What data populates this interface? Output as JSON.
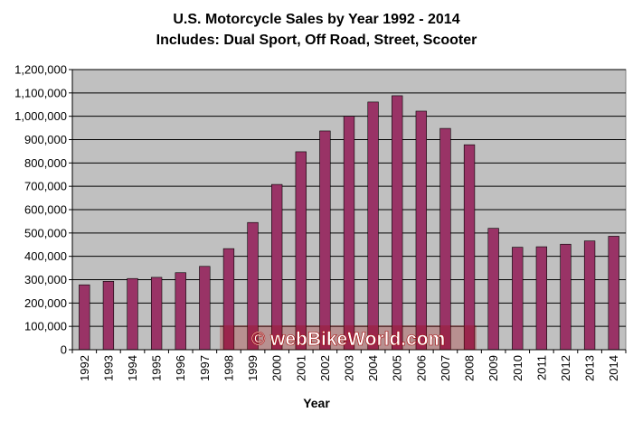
{
  "chart_data": {
    "type": "bar",
    "title": "U.S. Motorcycle Sales by Year 1992 - 2014",
    "subtitle": "Includes: Dual Sport, Off Road, Street, Scooter",
    "xlabel": "Year",
    "ylabel": "",
    "ylim": [
      0,
      1200000
    ],
    "ytick_step": 100000,
    "yticks": [
      "0",
      "100,000",
      "200,000",
      "300,000",
      "400,000",
      "500,000",
      "600,000",
      "700,000",
      "800,000",
      "900,000",
      "1,000,000",
      "1,100,000",
      "1,200,000"
    ],
    "grid": true,
    "legend": "none",
    "categories": [
      "1992",
      "1993",
      "1994",
      "1995",
      "1996",
      "1997",
      "1998",
      "1999",
      "2000",
      "2001",
      "2002",
      "2003",
      "2004",
      "2005",
      "2006",
      "2007",
      "2008",
      "2009",
      "2010",
      "2011",
      "2012",
      "2013",
      "2014"
    ],
    "values": [
      278000,
      293000,
      305000,
      310000,
      330000,
      357000,
      433000,
      545000,
      708000,
      848000,
      937000,
      1000000,
      1061000,
      1088000,
      1022000,
      948000,
      878000,
      520000,
      439000,
      441000,
      452000,
      466000,
      486000
    ],
    "colors": {
      "bar": "#993366",
      "plot_background": "#c0c0c0",
      "grid": "#000000"
    }
  },
  "watermark": {
    "text": "© webBikeWorld.com",
    "color": "#a00000"
  }
}
